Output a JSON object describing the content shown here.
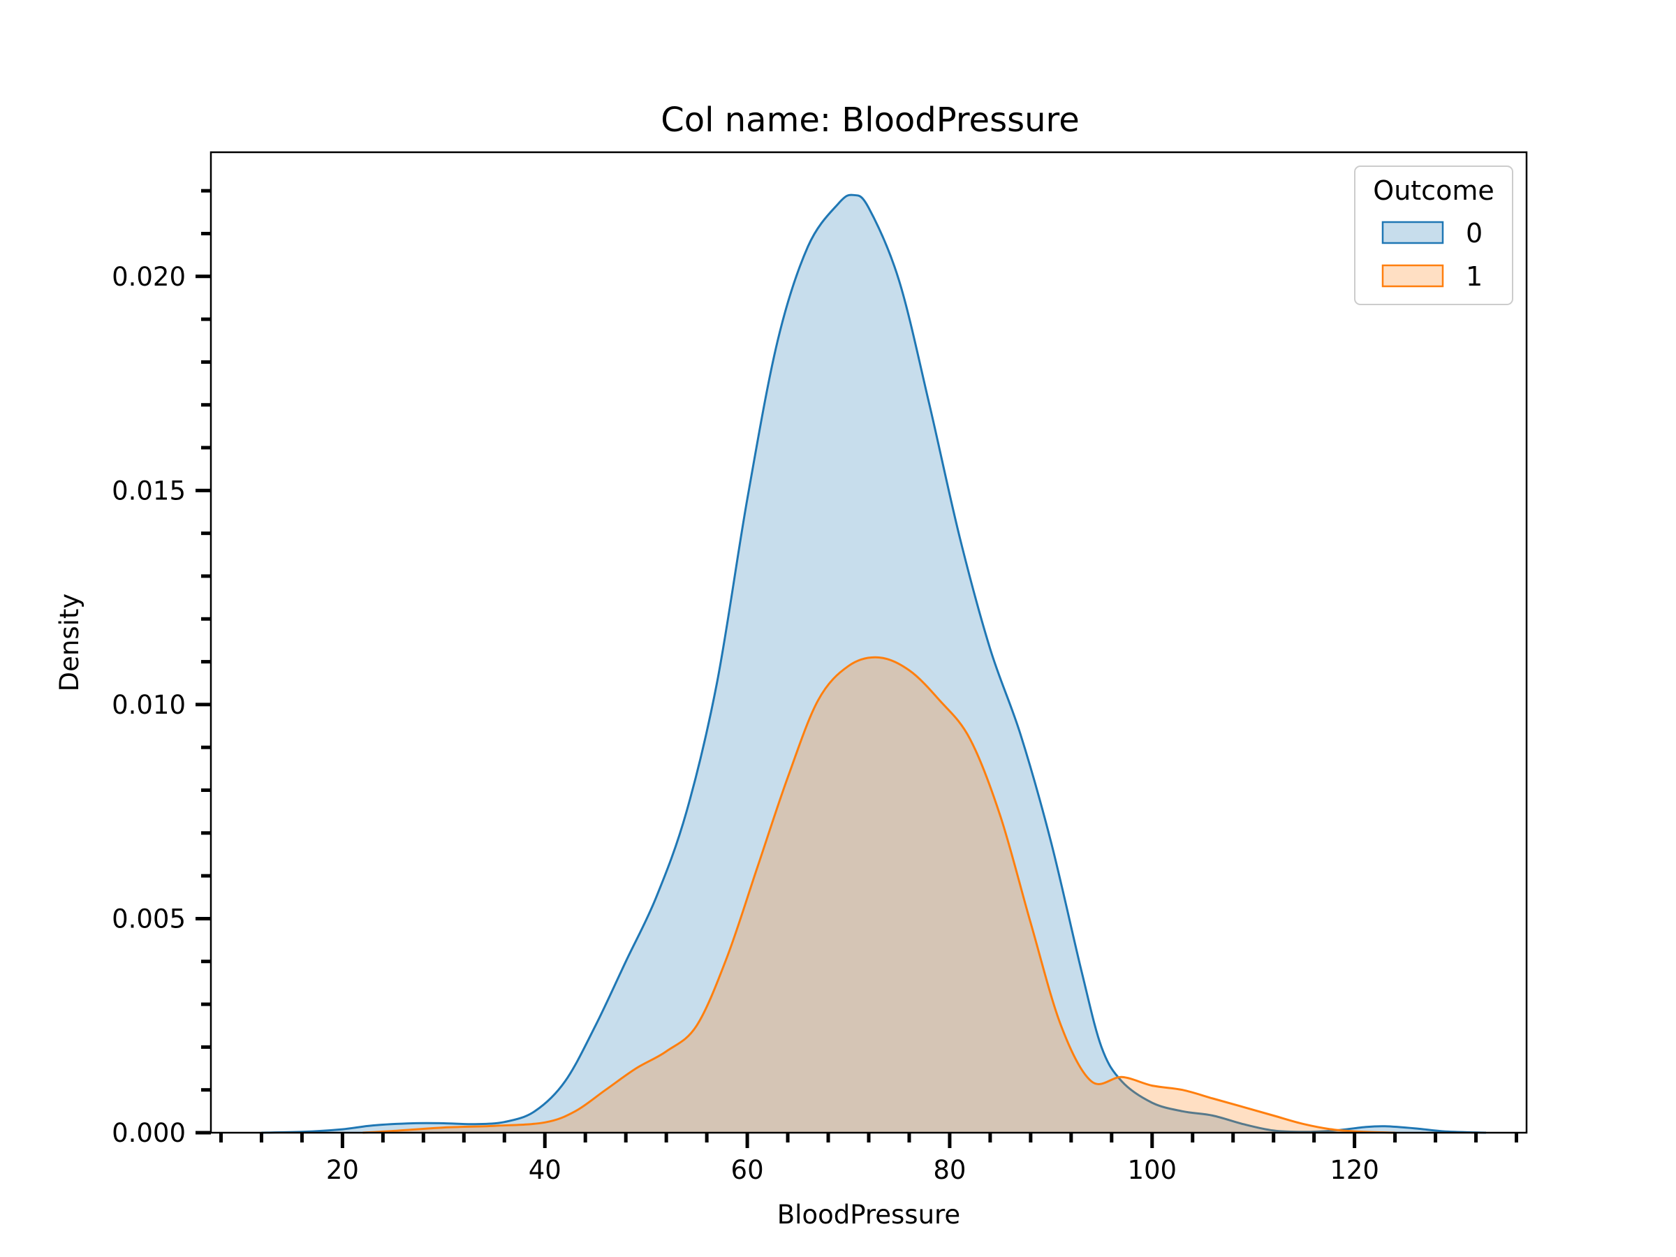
{
  "chart_data": {
    "type": "area",
    "title": "Col name: BloodPressure",
    "xlabel": "BloodPressure",
    "ylabel": "Density",
    "xlim": [
      7,
      137
    ],
    "ylim": [
      0,
      0.0229
    ],
    "x_ticks": [
      20,
      40,
      60,
      80,
      100,
      120
    ],
    "x_tick_labels": [
      "20",
      "40",
      "60",
      "80",
      "100",
      "120"
    ],
    "y_ticks": [
      0,
      0.005,
      0.01,
      0.015,
      0.02
    ],
    "y_tick_labels": [
      "0.000",
      "0.005",
      "0.010",
      "0.015",
      "0.020"
    ],
    "grid": false,
    "legend": {
      "title": "Outcome",
      "placement": "top-right",
      "entries": [
        "0",
        "1"
      ]
    },
    "series": [
      {
        "name": "0",
        "color": "#1f77b4",
        "fill_color": "#1f77b4",
        "fill_opacity": 0.25,
        "points": [
          [
            12,
            0
          ],
          [
            16,
            2e-05
          ],
          [
            20,
            8e-05
          ],
          [
            23,
            0.00017
          ],
          [
            27,
            0.00022
          ],
          [
            30,
            0.00022
          ],
          [
            33,
            0.0002
          ],
          [
            36,
            0.00025
          ],
          [
            39,
            0.0005
          ],
          [
            42,
            0.0012
          ],
          [
            45,
            0.0025
          ],
          [
            48,
            0.004
          ],
          [
            51,
            0.0055
          ],
          [
            54,
            0.0075
          ],
          [
            57,
            0.0105
          ],
          [
            60,
            0.0148
          ],
          [
            63,
            0.0185
          ],
          [
            66,
            0.0207
          ],
          [
            69,
            0.0217
          ],
          [
            70.5,
            0.0219
          ],
          [
            72,
            0.0216
          ],
          [
            75,
            0.0199
          ],
          [
            78,
            0.017
          ],
          [
            81,
            0.0139
          ],
          [
            84,
            0.0113
          ],
          [
            87,
            0.0093
          ],
          [
            90,
            0.0068
          ],
          [
            93,
            0.0038
          ],
          [
            95,
            0.002
          ],
          [
            97,
            0.0012
          ],
          [
            100,
            0.0007
          ],
          [
            103,
            0.0005
          ],
          [
            106,
            0.0004
          ],
          [
            109,
            0.0002
          ],
          [
            112,
            5e-05
          ],
          [
            115,
            2e-05
          ],
          [
            118,
            5e-05
          ],
          [
            121,
            0.00013
          ],
          [
            123,
            0.00015
          ],
          [
            126,
            0.0001
          ],
          [
            129,
            3e-05
          ],
          [
            133,
            0
          ]
        ]
      },
      {
        "name": "1",
        "color": "#ff7f0e",
        "fill_color": "#ff7f0e",
        "fill_opacity": 0.25,
        "points": [
          [
            22,
            0
          ],
          [
            25,
            4e-05
          ],
          [
            30,
            0.00012
          ],
          [
            35,
            0.00016
          ],
          [
            40,
            0.00024
          ],
          [
            43,
            0.0005
          ],
          [
            46,
            0.001
          ],
          [
            49,
            0.0015
          ],
          [
            52,
            0.0019
          ],
          [
            55,
            0.0025
          ],
          [
            58,
            0.0041
          ],
          [
            61,
            0.0062
          ],
          [
            64,
            0.0083
          ],
          [
            67,
            0.0101
          ],
          [
            70,
            0.0109
          ],
          [
            73,
            0.0111
          ],
          [
            76,
            0.0108
          ],
          [
            79,
            0.0101
          ],
          [
            82,
            0.0092
          ],
          [
            85,
            0.0074
          ],
          [
            88,
            0.0049
          ],
          [
            91,
            0.0025
          ],
          [
            94,
            0.0012
          ],
          [
            97,
            0.0013
          ],
          [
            100,
            0.0011
          ],
          [
            103,
            0.001
          ],
          [
            106,
            0.0008
          ],
          [
            109,
            0.0006
          ],
          [
            112,
            0.0004
          ],
          [
            115,
            0.0002
          ],
          [
            118,
            7e-05
          ],
          [
            121,
            2e-05
          ],
          [
            124,
            0
          ]
        ]
      }
    ]
  }
}
